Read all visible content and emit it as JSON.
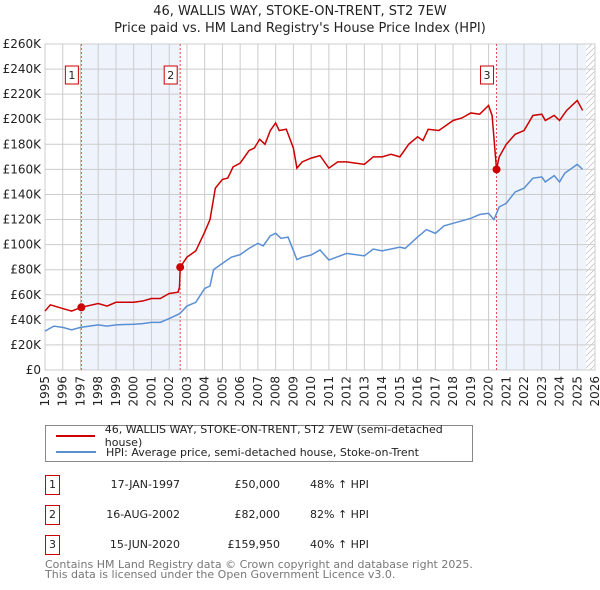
{
  "title": {
    "line1": "46, WALLIS WAY, STOKE-ON-TRENT, ST2 7EW",
    "line2": "Price paid vs. HM Land Registry's House Price Index (HPI)"
  },
  "legend": {
    "property": "46, WALLIS WAY, STOKE-ON-TRENT, ST2 7EW (semi-detached house)",
    "hpi": "HPI: Average price, semi-detached house, Stoke-on-Trent"
  },
  "sales": [
    {
      "num": "1",
      "date": "17-JAN-1997",
      "price": "£50,000",
      "hpi": "48% ↑ HPI"
    },
    {
      "num": "2",
      "date": "16-AUG-2002",
      "price": "£82,000",
      "hpi": "82% ↑ HPI"
    },
    {
      "num": "3",
      "date": "15-JUN-2020",
      "price": "£159,950",
      "hpi": "40% ↑ HPI"
    }
  ],
  "footer": {
    "line1": "Contains HM Land Registry data © Crown copyright and database right 2025.",
    "line2": "This data is licensed under the Open Government Licence v3.0."
  },
  "chart_data": {
    "type": "line",
    "xlim": [
      1995,
      2026
    ],
    "ylim": [
      0,
      260000
    ],
    "xticks": [
      "1995",
      "1996",
      "1997",
      "1998",
      "1999",
      "2000",
      "2001",
      "2002",
      "2003",
      "2004",
      "2005",
      "2006",
      "2007",
      "2008",
      "2009",
      "2010",
      "2011",
      "2012",
      "2013",
      "2014",
      "2015",
      "2016",
      "2017",
      "2018",
      "2019",
      "2020",
      "2021",
      "2022",
      "2023",
      "2024",
      "2025",
      "2026"
    ],
    "yticks": [
      "£0",
      "£20K",
      "£40K",
      "£60K",
      "£80K",
      "£100K",
      "£120K",
      "£140K",
      "£160K",
      "£180K",
      "£200K",
      "£220K",
      "£240K",
      "£260K"
    ],
    "colors": {
      "property": "#cc0000",
      "hpi": "#5b8fd4",
      "shade": "#eef3fc"
    },
    "shaded": [
      [
        1997.05,
        2002.62
      ],
      [
        2020.45,
        2025.5
      ]
    ],
    "hatched_from": 2025.5,
    "sale_points": [
      {
        "label": "1",
        "x": 1997.05,
        "y": 50000
      },
      {
        "label": "2",
        "x": 2002.62,
        "y": 82000
      },
      {
        "label": "3",
        "x": 2020.45,
        "y": 159950
      }
    ],
    "series": [
      {
        "name": "property",
        "points": [
          [
            1995,
            47000
          ],
          [
            1995.3,
            52000
          ],
          [
            1996,
            49000
          ],
          [
            1996.5,
            47000
          ],
          [
            1997.05,
            50000
          ],
          [
            1998,
            53000
          ],
          [
            1998.5,
            51000
          ],
          [
            1999,
            54000
          ],
          [
            2000,
            54000
          ],
          [
            2000.5,
            55000
          ],
          [
            2001,
            57000
          ],
          [
            2001.5,
            57000
          ],
          [
            2002,
            61000
          ],
          [
            2002.5,
            62000
          ],
          [
            2002.58,
            66000
          ],
          [
            2002.62,
            82000
          ],
          [
            2003,
            90000
          ],
          [
            2003.5,
            95000
          ],
          [
            2004,
            110000
          ],
          [
            2004.3,
            120000
          ],
          [
            2004.6,
            145000
          ],
          [
            2005,
            152000
          ],
          [
            2005.3,
            153000
          ],
          [
            2005.6,
            162000
          ],
          [
            2006,
            165000
          ],
          [
            2006.5,
            175000
          ],
          [
            2006.8,
            177000
          ],
          [
            2007.1,
            184000
          ],
          [
            2007.4,
            180000
          ],
          [
            2007.7,
            191000
          ],
          [
            2008,
            197000
          ],
          [
            2008.2,
            191000
          ],
          [
            2008.6,
            192000
          ],
          [
            2009,
            177000
          ],
          [
            2009.2,
            161000
          ],
          [
            2009.5,
            166000
          ],
          [
            2010,
            169000
          ],
          [
            2010.5,
            171000
          ],
          [
            2011,
            161000
          ],
          [
            2011.5,
            166000
          ],
          [
            2012,
            166000
          ],
          [
            2012.5,
            165000
          ],
          [
            2013,
            164000
          ],
          [
            2013.5,
            170000
          ],
          [
            2014,
            170000
          ],
          [
            2014.5,
            172000
          ],
          [
            2015,
            170000
          ],
          [
            2015.5,
            180000
          ],
          [
            2016,
            186000
          ],
          [
            2016.3,
            183000
          ],
          [
            2016.6,
            192000
          ],
          [
            2017.2,
            191000
          ],
          [
            2017.5,
            194000
          ],
          [
            2018,
            199000
          ],
          [
            2018.5,
            201000
          ],
          [
            2019,
            205000
          ],
          [
            2019.5,
            204000
          ],
          [
            2020,
            211000
          ],
          [
            2020.2,
            203000
          ],
          [
            2020.45,
            159950
          ],
          [
            2020.6,
            170000
          ],
          [
            2021,
            180000
          ],
          [
            2021.5,
            188000
          ],
          [
            2022,
            191000
          ],
          [
            2022.5,
            203000
          ],
          [
            2023,
            204000
          ],
          [
            2023.2,
            199000
          ],
          [
            2023.7,
            203000
          ],
          [
            2024,
            199000
          ],
          [
            2024.4,
            207000
          ],
          [
            2025,
            215000
          ],
          [
            2025.3,
            207000
          ]
        ]
      },
      {
        "name": "hpi",
        "points": [
          [
            1995,
            31000
          ],
          [
            1995.5,
            35000
          ],
          [
            1996,
            34000
          ],
          [
            1996.5,
            32000
          ],
          [
            1997,
            34000
          ],
          [
            1998,
            36000
          ],
          [
            1998.5,
            35000
          ],
          [
            1999,
            36000
          ],
          [
            2000,
            36500
          ],
          [
            2000.5,
            37000
          ],
          [
            2001,
            38000
          ],
          [
            2001.5,
            38000
          ],
          [
            2002,
            41000
          ],
          [
            2002.6,
            45000
          ],
          [
            2003,
            51000
          ],
          [
            2003.5,
            54000
          ],
          [
            2004,
            65000
          ],
          [
            2004.3,
            67000
          ],
          [
            2004.5,
            80000
          ],
          [
            2005,
            85000
          ],
          [
            2005.5,
            90000
          ],
          [
            2006,
            92000
          ],
          [
            2006.5,
            97000
          ],
          [
            2007,
            101000
          ],
          [
            2007.3,
            99000
          ],
          [
            2007.7,
            107000
          ],
          [
            2008,
            109000
          ],
          [
            2008.3,
            105000
          ],
          [
            2008.7,
            106000
          ],
          [
            2009.2,
            88000
          ],
          [
            2009.5,
            90000
          ],
          [
            2010,
            91700
          ],
          [
            2010.5,
            95700
          ],
          [
            2011,
            87700
          ],
          [
            2012,
            93000
          ],
          [
            2013,
            91000
          ],
          [
            2013.5,
            96500
          ],
          [
            2014,
            95000
          ],
          [
            2015,
            98000
          ],
          [
            2015.3,
            97000
          ],
          [
            2016,
            106000
          ],
          [
            2016.5,
            112000
          ],
          [
            2017,
            109000
          ],
          [
            2017.5,
            115000
          ],
          [
            2018,
            117000
          ],
          [
            2019,
            121000
          ],
          [
            2019.5,
            124000
          ],
          [
            2020,
            125000
          ],
          [
            2020.3,
            120000
          ],
          [
            2020.6,
            130000
          ],
          [
            2021,
            133000
          ],
          [
            2021.5,
            142000
          ],
          [
            2022,
            145000
          ],
          [
            2022.5,
            153000
          ],
          [
            2023,
            154000
          ],
          [
            2023.2,
            150000
          ],
          [
            2023.7,
            155000
          ],
          [
            2024,
            150000
          ],
          [
            2024.3,
            157000
          ],
          [
            2025,
            164000
          ],
          [
            2025.3,
            160000
          ]
        ]
      }
    ]
  }
}
